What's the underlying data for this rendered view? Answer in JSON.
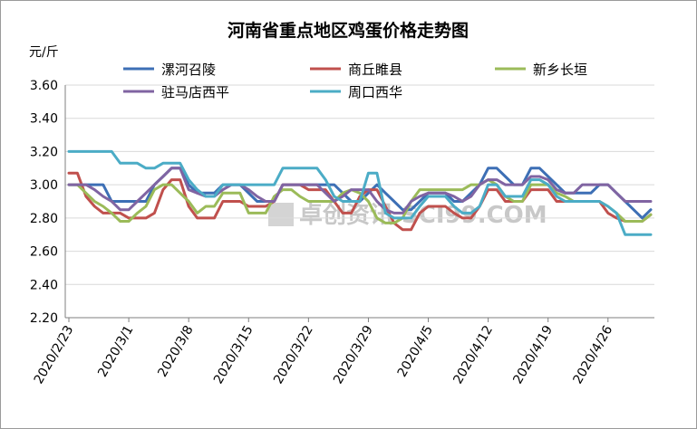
{
  "chart_data": {
    "type": "line",
    "title": "河南省重点地区鸡蛋价格走势图",
    "ylabel": "元/斤",
    "ylim": [
      2.2,
      3.6
    ],
    "yticks": [
      "3.60",
      "3.40",
      "3.20",
      "3.00",
      "2.80",
      "2.60",
      "2.40",
      "2.20"
    ],
    "xticks": [
      "2020/2/23",
      "2020/3/1",
      "2020/3/8",
      "2020/3/15",
      "2020/3/22",
      "2020/3/29",
      "2020/4/5",
      "2020/4/12",
      "2020/4/19",
      "2020/4/26"
    ],
    "grid": "horizontal",
    "legend_position": "top",
    "watermark": "卓创资讯 SCI99.COM",
    "series": [
      {
        "name": "漯河召陵",
        "color": "#3d6fb5",
        "values": [
          3.0,
          3.0,
          3.0,
          3.0,
          3.0,
          2.9,
          2.9,
          2.9,
          2.9,
          2.9,
          3.0,
          3.05,
          3.1,
          3.1,
          3.0,
          2.95,
          2.95,
          2.95,
          3.0,
          3.0,
          3.0,
          2.95,
          2.9,
          2.9,
          2.9,
          3.0,
          3.0,
          3.0,
          3.0,
          3.0,
          3.0,
          3.0,
          2.95,
          2.9,
          2.9,
          2.95,
          3.0,
          2.95,
          2.9,
          2.85,
          2.85,
          2.9,
          2.95,
          2.95,
          2.95,
          2.9,
          2.9,
          2.95,
          3.0,
          3.1,
          3.1,
          3.05,
          3.0,
          3.0,
          3.1,
          3.1,
          3.05,
          3.0,
          2.95,
          2.95,
          2.95,
          2.95,
          3.0,
          3.0,
          2.95,
          2.9,
          2.85,
          2.8,
          2.85
        ]
      },
      {
        "name": "商丘睢县",
        "color": "#c0504d",
        "values": [
          3.07,
          3.07,
          2.93,
          2.87,
          2.83,
          2.83,
          2.83,
          2.8,
          2.8,
          2.8,
          2.83,
          2.97,
          3.03,
          3.03,
          2.87,
          2.8,
          2.8,
          2.8,
          2.9,
          2.9,
          2.9,
          2.87,
          2.87,
          2.87,
          2.9,
          3.0,
          3.0,
          3.0,
          2.97,
          2.97,
          2.97,
          2.9,
          2.83,
          2.83,
          2.93,
          2.97,
          2.97,
          2.87,
          2.77,
          2.73,
          2.73,
          2.83,
          2.87,
          2.87,
          2.87,
          2.83,
          2.8,
          2.8,
          2.87,
          2.97,
          2.97,
          2.9,
          2.9,
          2.9,
          2.97,
          2.97,
          2.97,
          2.9,
          2.9,
          2.9,
          2.9,
          2.9,
          2.9,
          2.83,
          2.8,
          2.78,
          2.78,
          2.78,
          2.82
        ]
      },
      {
        "name": "新乡长垣",
        "color": "#9bbb59",
        "values": [
          3.0,
          3.0,
          2.95,
          2.9,
          2.87,
          2.83,
          2.78,
          2.78,
          2.83,
          2.87,
          2.97,
          3.0,
          3.0,
          2.95,
          2.9,
          2.83,
          2.87,
          2.87,
          2.95,
          2.95,
          2.95,
          2.83,
          2.83,
          2.83,
          2.93,
          2.97,
          2.97,
          2.93,
          2.9,
          2.9,
          2.9,
          2.9,
          2.95,
          2.97,
          2.95,
          2.9,
          2.8,
          2.77,
          2.77,
          2.8,
          2.9,
          2.97,
          2.97,
          2.97,
          2.97,
          2.97,
          2.97,
          3.0,
          3.0,
          3.03,
          3.0,
          2.93,
          2.9,
          2.9,
          3.0,
          3.0,
          3.0,
          2.95,
          2.93,
          2.9,
          2.9,
          2.9,
          2.9,
          2.87,
          2.83,
          2.78,
          2.78,
          2.78,
          2.82
        ]
      },
      {
        "name": "驻马店西平",
        "color": "#8064a2",
        "values": [
          3.0,
          3.0,
          3.0,
          2.97,
          2.93,
          2.9,
          2.85,
          2.85,
          2.9,
          2.95,
          3.0,
          3.05,
          3.1,
          3.1,
          2.97,
          2.95,
          2.93,
          2.93,
          2.97,
          3.0,
          3.0,
          2.97,
          2.93,
          2.9,
          2.9,
          3.0,
          3.0,
          3.0,
          3.0,
          3.0,
          2.95,
          2.9,
          2.93,
          2.97,
          2.97,
          2.97,
          2.9,
          2.85,
          2.83,
          2.83,
          2.9,
          2.93,
          2.95,
          2.95,
          2.95,
          2.93,
          2.9,
          2.93,
          3.0,
          3.03,
          3.03,
          3.0,
          3.0,
          3.0,
          3.05,
          3.05,
          3.03,
          2.97,
          2.95,
          2.95,
          3.0,
          3.0,
          3.0,
          3.0,
          2.95,
          2.9,
          2.9,
          2.9,
          2.9
        ]
      },
      {
        "name": "周口西华",
        "color": "#4bacc6",
        "values": [
          3.2,
          3.2,
          3.2,
          3.2,
          3.2,
          3.2,
          3.13,
          3.13,
          3.13,
          3.1,
          3.1,
          3.13,
          3.13,
          3.13,
          3.03,
          2.97,
          2.93,
          2.93,
          3.0,
          3.0,
          3.0,
          3.0,
          3.0,
          3.0,
          3.0,
          3.1,
          3.1,
          3.1,
          3.1,
          3.1,
          3.03,
          2.93,
          2.9,
          2.9,
          2.9,
          3.07,
          3.07,
          2.83,
          2.8,
          2.8,
          2.8,
          2.87,
          2.93,
          2.93,
          2.93,
          2.87,
          2.83,
          2.83,
          2.87,
          3.0,
          3.0,
          2.93,
          2.93,
          2.93,
          3.03,
          3.03,
          3.0,
          2.93,
          2.9,
          2.9,
          2.9,
          2.9,
          2.9,
          2.87,
          2.83,
          2.7,
          2.7,
          2.7,
          2.7
        ]
      }
    ]
  }
}
